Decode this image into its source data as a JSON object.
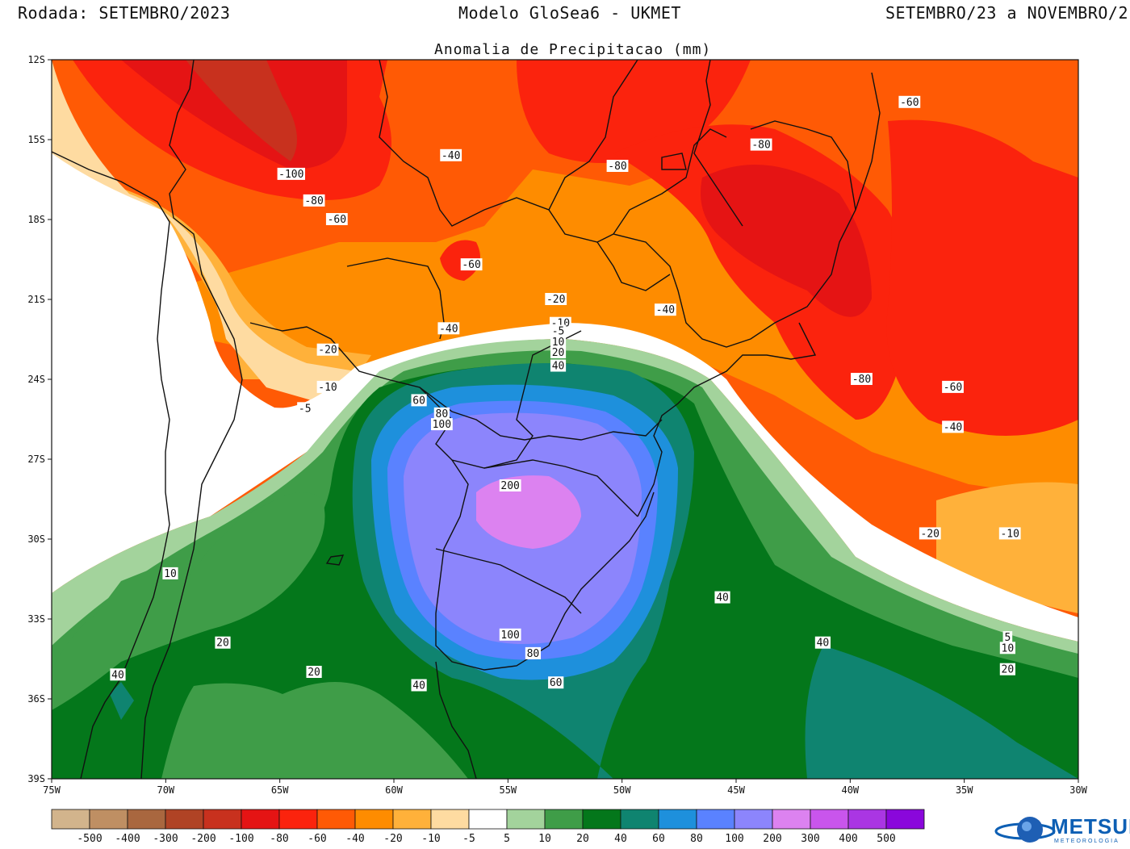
{
  "header": {
    "run": "Rodada: SETEMBRO/2023",
    "model": "Modelo GloSea6 - UKMET",
    "period": "SETEMBRO/23 a NOVEMBRO/2",
    "subtitle": "Anomalia de Precipitacao (mm)"
  },
  "axes": {
    "lat_labels": [
      "12S",
      "15S",
      "18S",
      "21S",
      "24S",
      "27S",
      "30S",
      "33S",
      "36S",
      "39S"
    ],
    "lon_labels": [
      "75W",
      "70W",
      "65W",
      "60W",
      "55W",
      "50W",
      "45W",
      "40W",
      "35W",
      "30W"
    ]
  },
  "colors": {
    "ocean_white": "#ffffff",
    "border": "#111111"
  },
  "contour_labels": [
    {
      "text": "-100",
      "lon": -64.5,
      "lat": -16.3
    },
    {
      "text": "-80",
      "lon": -63.5,
      "lat": -17.3
    },
    {
      "text": "-60",
      "lon": -62.5,
      "lat": -18.0
    },
    {
      "text": "-40",
      "lon": -57.5,
      "lat": -15.6
    },
    {
      "text": "-60",
      "lon": -56.6,
      "lat": -19.7
    },
    {
      "text": "-80",
      "lon": -50.2,
      "lat": -16.0
    },
    {
      "text": "-80",
      "lon": -43.9,
      "lat": -15.2
    },
    {
      "text": "-60",
      "lon": -37.4,
      "lat": -13.6
    },
    {
      "text": "-20",
      "lon": -52.9,
      "lat": -21.0
    },
    {
      "text": "-10",
      "lon": -52.7,
      "lat": -21.9
    },
    {
      "text": "-5",
      "lon": -52.8,
      "lat": -22.2
    },
    {
      "text": "10",
      "lon": -52.8,
      "lat": -22.6
    },
    {
      "text": "20",
      "lon": -52.8,
      "lat": -23.0
    },
    {
      "text": "40",
      "lon": -52.8,
      "lat": -23.5
    },
    {
      "text": "-40",
      "lon": -48.1,
      "lat": -21.4
    },
    {
      "text": "-40",
      "lon": -57.6,
      "lat": -22.1
    },
    {
      "text": "-20",
      "lon": -62.9,
      "lat": -22.9
    },
    {
      "text": "-10",
      "lon": -62.9,
      "lat": -24.3
    },
    {
      "text": "-5",
      "lon": -63.9,
      "lat": -25.1
    },
    {
      "text": "60",
      "lon": -58.9,
      "lat": -24.8
    },
    {
      "text": "80",
      "lon": -57.9,
      "lat": -25.3
    },
    {
      "text": "100",
      "lon": -57.9,
      "lat": -25.7
    },
    {
      "text": "200",
      "lon": -54.9,
      "lat": -28.0
    },
    {
      "text": "-80",
      "lon": -39.5,
      "lat": -24.0
    },
    {
      "text": "-60",
      "lon": -35.5,
      "lat": -24.3
    },
    {
      "text": "-40",
      "lon": -35.5,
      "lat": -25.8
    },
    {
      "text": "-20",
      "lon": -36.5,
      "lat": -29.8
    },
    {
      "text": "-10",
      "lon": -33.0,
      "lat": -29.8
    },
    {
      "text": "10",
      "lon": -69.8,
      "lat": -31.3
    },
    {
      "text": "20",
      "lon": -67.5,
      "lat": -33.9
    },
    {
      "text": "20",
      "lon": -63.5,
      "lat": -35.0
    },
    {
      "text": "40",
      "lon": -72.1,
      "lat": -35.1
    },
    {
      "text": "40",
      "lon": -58.9,
      "lat": -35.5
    },
    {
      "text": "100",
      "lon": -54.9,
      "lat": -33.6
    },
    {
      "text": "80",
      "lon": -53.9,
      "lat": -34.3
    },
    {
      "text": "60",
      "lon": -52.9,
      "lat": -35.4
    },
    {
      "text": "40",
      "lon": -45.6,
      "lat": -32.2
    },
    {
      "text": "40",
      "lon": -41.2,
      "lat": -33.9
    },
    {
      "text": "5",
      "lon": -33.1,
      "lat": -33.7
    },
    {
      "text": "10",
      "lon": -33.1,
      "lat": -34.1
    },
    {
      "text": "20",
      "lon": -33.1,
      "lat": -34.9
    }
  ],
  "colorbar": {
    "levels": [
      "-500",
      "-400",
      "-300",
      "-200",
      "-100",
      "-80",
      "-60",
      "-40",
      "-20",
      "-10",
      "-5",
      "5",
      "10",
      "20",
      "40",
      "60",
      "80",
      "100",
      "200",
      "300",
      "400",
      "500"
    ],
    "colors": [
      "#d2b48c",
      "#bf8f63",
      "#a9673f",
      "#b04325",
      "#c8311e",
      "#e51414",
      "#fb230d",
      "#ff5a05",
      "#fe8c00",
      "#ffb13a",
      "#fedba1",
      "#ffffff",
      "#a3d39c",
      "#3f9d48",
      "#04771b",
      "#0f8470",
      "#1e90dc",
      "#5a82ff",
      "#8c85fc",
      "#dc82f0",
      "#c955ec",
      "#aa36e3",
      "#8a07db"
    ]
  },
  "logo": {
    "name": "METSUL",
    "tagline": "METEOROLOGIA"
  }
}
